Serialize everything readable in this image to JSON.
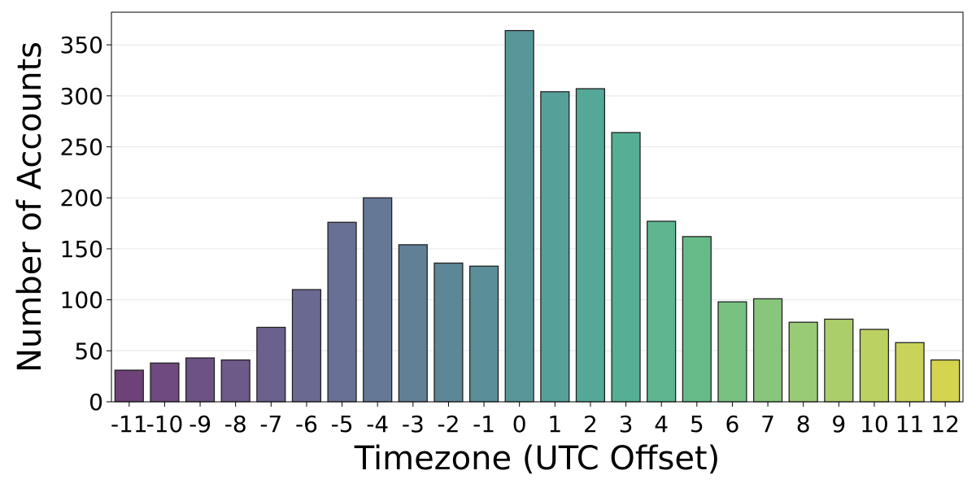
{
  "chart_data": {
    "type": "bar",
    "title": "",
    "xlabel": "Timezone (UTC Offset)",
    "ylabel": "Number of Accounts",
    "categories": [
      "-11",
      "-10",
      "-9",
      "-8",
      "-7",
      "-6",
      "-5",
      "-4",
      "-3",
      "-2",
      "-1",
      "0",
      "1",
      "2",
      "3",
      "4",
      "5",
      "6",
      "7",
      "8",
      "9",
      "10",
      "11",
      "12"
    ],
    "values": [
      31,
      38,
      43,
      41,
      73,
      110,
      176,
      200,
      154,
      136,
      133,
      364,
      304,
      307,
      264,
      177,
      162,
      98,
      101,
      78,
      81,
      71,
      58,
      41
    ],
    "ylim": [
      0,
      382
    ],
    "yticks": [
      0,
      50,
      100,
      150,
      200,
      250,
      300,
      350
    ],
    "grid": "y-axis, light",
    "colormap": "viridis",
    "colors": [
      "#6e4278",
      "#6e4a80",
      "#6d5285",
      "#6d5a89",
      "#6c618d",
      "#6a6992",
      "#687095",
      "#657896",
      "#618096",
      "#5d8797",
      "#5a8e98",
      "#57979a",
      "#56a09a",
      "#55a898",
      "#56af95",
      "#5eb690",
      "#67bb89",
      "#78c181",
      "#88c67b",
      "#99ca76",
      "#abce6b",
      "#bbd263",
      "#c9d35a",
      "#d4d44f"
    ]
  }
}
